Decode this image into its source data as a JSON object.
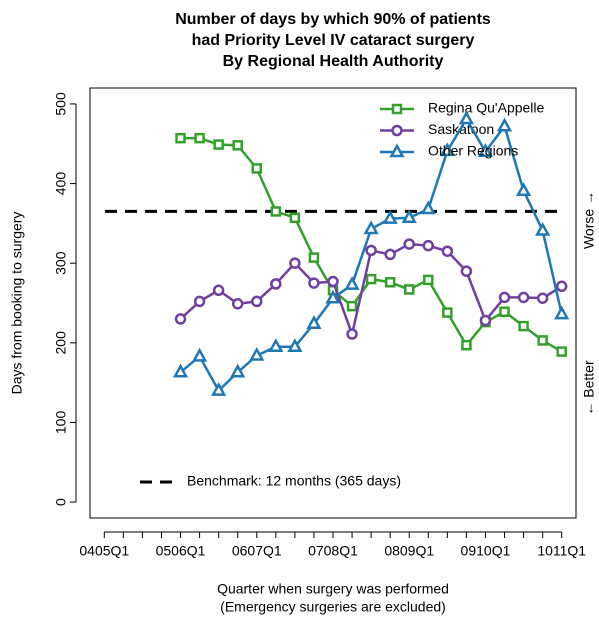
{
  "chart_data": {
    "type": "line",
    "title": [
      "Number of days by which 90% of patients",
      "had Priority Level IV cataract surgery",
      "By Regional Health Authority"
    ],
    "xlabel": [
      "Quarter when surgery was performed",
      "(Emergency surgeries are excluded)"
    ],
    "ylabel": "Days from booking to surgery",
    "right_labels": {
      "top": "Worse →",
      "bottom": "← Better"
    },
    "categories": [
      "0405Q1",
      null,
      null,
      null,
      "0506Q1",
      null,
      null,
      null,
      "0607Q1",
      null,
      null,
      null,
      "0708Q1",
      null,
      null,
      null,
      "0809Q1",
      null,
      null,
      null,
      "0910Q1",
      null,
      null,
      null,
      "1011Q1"
    ],
    "series": [
      {
        "name": "Regina Qu'Appelle",
        "color": "#33a02c",
        "marker": "square",
        "values": [
          null,
          null,
          null,
          null,
          457,
          457,
          449,
          448,
          419,
          365,
          357,
          307,
          266,
          246,
          280,
          276,
          267,
          279,
          238,
          197,
          226,
          239,
          221,
          203,
          189
        ]
      },
      {
        "name": "Saskatoon",
        "color": "#7040a0",
        "marker": "circle",
        "values": [
          null,
          null,
          null,
          null,
          230,
          252,
          266,
          249,
          252,
          274,
          300,
          275,
          277,
          211,
          316,
          311,
          324,
          322,
          315,
          290,
          228,
          257,
          257,
          256,
          271
        ]
      },
      {
        "name": "Other Regions",
        "color": "#1f78b4",
        "marker": "triangle",
        "values": [
          null,
          null,
          null,
          null,
          163,
          183,
          140,
          163,
          184,
          195,
          195,
          224,
          256,
          273,
          343,
          356,
          357,
          368,
          441,
          481,
          440,
          472,
          391,
          341,
          236
        ]
      }
    ],
    "benchmark": {
      "value": 365,
      "label": "Benchmark: 12 months (365 days)"
    },
    "ylim": [
      -20,
      520
    ],
    "yticks": [
      0,
      100,
      200,
      300,
      400,
      500
    ],
    "legend": "top-right",
    "grid": false
  }
}
